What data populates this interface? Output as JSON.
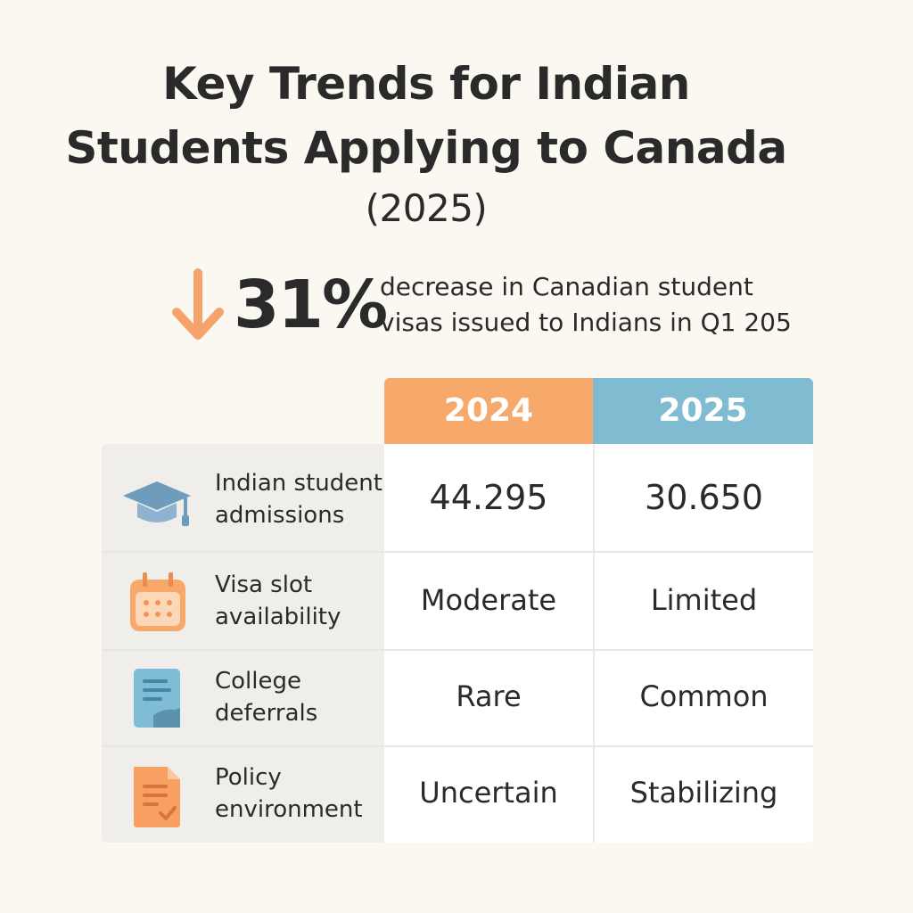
{
  "title": {
    "line1": "Key Trends for Indian",
    "line2": "Students Applying to Canada",
    "year": "(2025)"
  },
  "stat": {
    "direction_icon": "arrow-down-icon",
    "value": "31%",
    "desc_line1": "decrease in Canadian student",
    "desc_line2": "visas issued to Indians in Q1 205"
  },
  "colors": {
    "accent_2024": "#f6a96b",
    "accent_2025": "#7fbcd2",
    "arrow": "#f5a36a",
    "background": "#fbf8f2"
  },
  "table": {
    "columns": [
      "2024",
      "2025"
    ],
    "rows": [
      {
        "icon": "graduation-cap-icon",
        "label1": "Indian student",
        "label2": "admissions",
        "v2024": "44.295",
        "v2025": "30.650"
      },
      {
        "icon": "calendar-icon",
        "label1": "Visa slot",
        "label2": "availability",
        "v2024": "Moderate",
        "v2025": "Limited"
      },
      {
        "icon": "document-icon",
        "label1": "College",
        "label2": "deferrals",
        "v2024": "Rare",
        "v2025": "Common"
      },
      {
        "icon": "checklist-document-icon",
        "label1": "Policy",
        "label2": "environment",
        "v2024": "Uncertain",
        "v2025": "Stabilizing"
      }
    ]
  }
}
